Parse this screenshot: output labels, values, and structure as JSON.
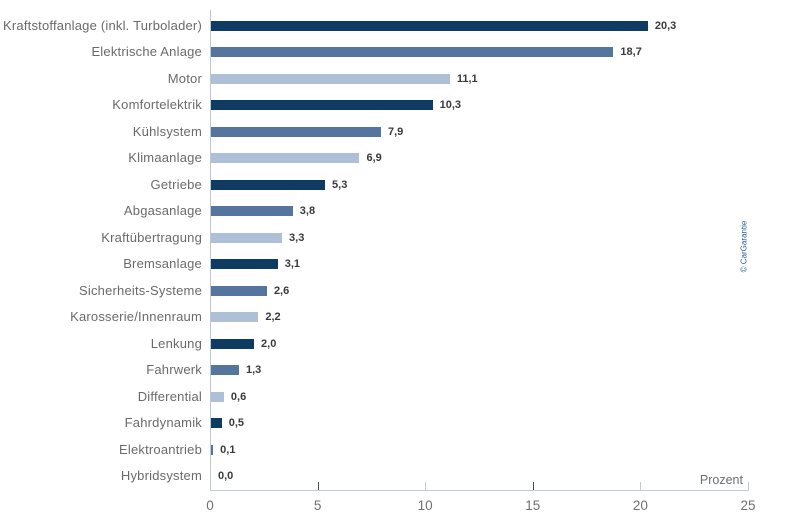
{
  "chart_data": {
    "type": "bar",
    "orientation": "horizontal",
    "title": "",
    "xlabel": "Prozent",
    "ylabel": "",
    "xlim": [
      0,
      25
    ],
    "x_ticks": [
      0,
      5,
      10,
      15,
      20,
      25
    ],
    "x_tick_labels": [
      "0",
      "5",
      "10",
      "15",
      "20",
      "25"
    ],
    "grid": false,
    "legend": false,
    "credit": "© CarGarantie",
    "categories": [
      "Kraftstoffanlage (inkl. Turbolader)",
      "Elektrische Anlage",
      "Motor",
      "Komfortelektrik",
      "Kühlsystem",
      "Klimaanlage",
      "Getriebe",
      "Abgasanlage",
      "Kraftübertragung",
      "Bremsanlage",
      "Sicherheits-Systeme",
      "Karosserie/Innenraum",
      "Lenkung",
      "Fahrwerk",
      "Differential",
      "Fahrdynamik",
      "Elektroantrieb",
      "Hybridsystem"
    ],
    "values": [
      20.3,
      18.7,
      11.1,
      10.3,
      7.9,
      6.9,
      5.3,
      3.8,
      3.3,
      3.1,
      2.6,
      2.2,
      2.0,
      1.3,
      0.6,
      0.5,
      0.1,
      0.0
    ],
    "value_labels": [
      "20,3",
      "18,7",
      "11,1",
      "10,3",
      "7,9",
      "6,9",
      "5,3",
      "3,8",
      "3,3",
      "3,1",
      "2,6",
      "2,2",
      "2,0",
      "1,3",
      "0,6",
      "0,5",
      "0,1",
      "0,0"
    ],
    "bar_color_pattern": [
      "dark",
      "medium",
      "light"
    ],
    "palette": {
      "dark": "#0f3a62",
      "medium": "#54759d",
      "light": "#adc0d8"
    },
    "colors": {
      "axis_line": "#b9c7d8",
      "major_tick": "#4d4d4d",
      "minor_tick": "#c6c9cc",
      "category_label": "#6a6a6a",
      "value_label": "#3a3a3a",
      "tick_label": "#707070",
      "credit_text": "#2c5f94"
    },
    "major_tick_values": [
      5,
      15
    ]
  }
}
